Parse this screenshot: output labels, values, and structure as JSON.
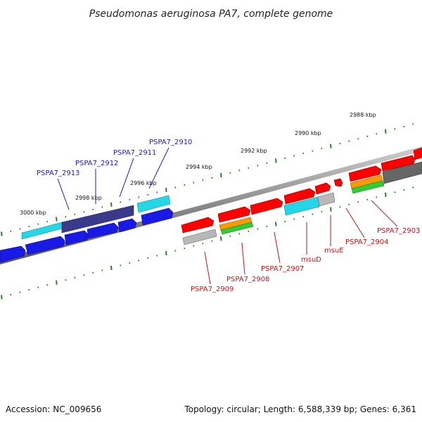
{
  "title": "Pseudomonas aeruginosa PA7, complete genome",
  "footer": {
    "accession": "Accession: NC_009656",
    "summary": "Topology: circular; Length: 6,588,339 bp; Genes: 6,361"
  },
  "scale_labels": [
    "2988 kbp",
    "2990 kbp",
    "2992 kbp",
    "2994 kbp",
    "2996 kbp",
    "2998 kbp",
    "3000 kbp"
  ],
  "gene_labels": [
    "PSPA7_2910",
    "PSPA7_2911",
    "PSPA7_2912",
    "PSPA7_2913",
    "PSPA7_2903",
    "PSPA7_2904",
    "msuE",
    "msuD",
    "PSPA7_2907",
    "PSPA7_2908",
    "PSPA7_2909"
  ],
  "colors": {
    "backbone": "#8a8a8a",
    "cds": "#1a1ae6",
    "cds_dark": "#3a3a8c",
    "rna_cyan": "#25d6e6",
    "red": "#ff0000",
    "orange": "#ff9900",
    "green": "#33cc33",
    "grey": "#b8b8b8",
    "dark_grey": "#666666",
    "tick": "#2e7d2e"
  }
}
